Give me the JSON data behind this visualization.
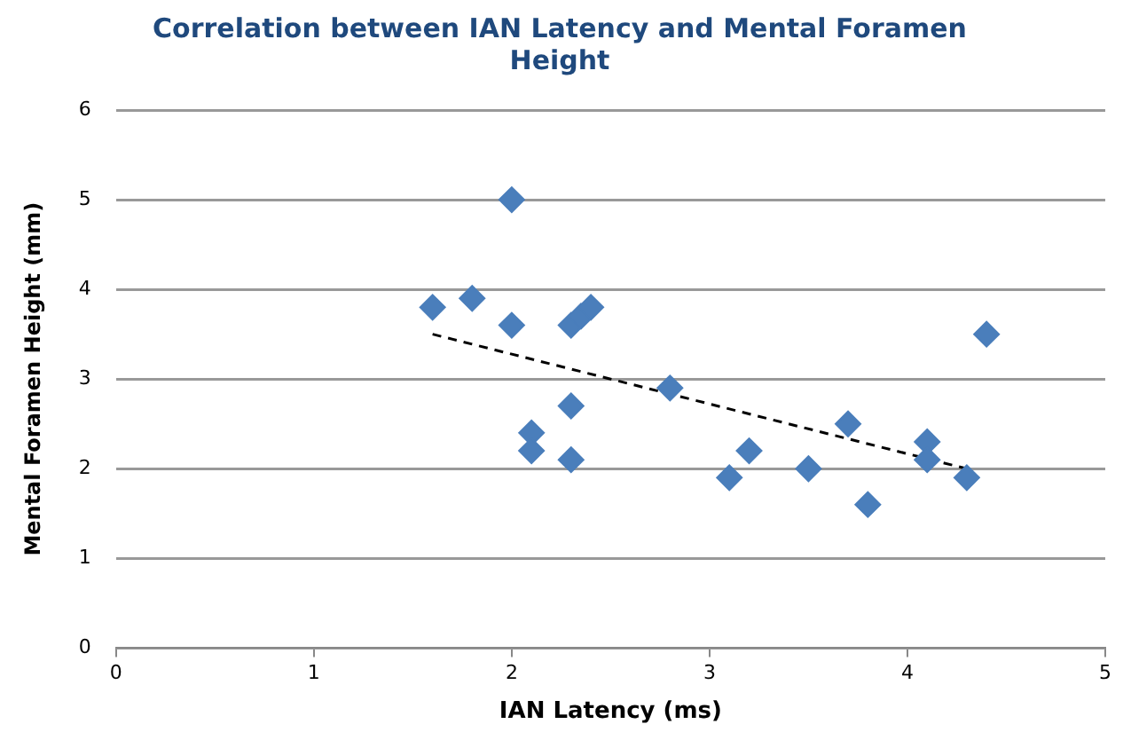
{
  "chart_data": {
    "type": "scatter",
    "title": "Correlation between IAN Latency and Mental Foramen Height",
    "xlabel": "IAN Latency (ms)",
    "ylabel": "Mental Foramen Height (mm)",
    "series": [
      {
        "color": "#4a7ebb",
        "marker": "diamond",
        "x": [
          1.6,
          1.8,
          2.0,
          2.0,
          2.1,
          2.1,
          2.3,
          2.3,
          2.3,
          2.35,
          2.4,
          2.8,
          3.1,
          3.2,
          3.5,
          3.7,
          3.8,
          4.1,
          4.1,
          4.3,
          4.4
        ],
        "values": [
          3.8,
          3.9,
          5.0,
          3.6,
          2.4,
          2.2,
          2.7,
          2.1,
          3.6,
          3.7,
          3.8,
          2.9,
          1.9,
          2.2,
          2.0,
          2.5,
          1.6,
          2.3,
          2.1,
          1.9,
          3.5
        ]
      },
      {
        "type": "line",
        "color": "#000000",
        "marker": "none",
        "line_style": "dashed",
        "x": [
          1.6,
          4.3
        ],
        "values": [
          3.5,
          2.0
        ]
      }
    ],
    "xlim": [
      0,
      5
    ],
    "xticks": [
      0,
      1,
      2,
      3,
      4,
      5
    ],
    "ylim": [
      0,
      6
    ],
    "yticks": [
      0,
      1,
      2,
      3,
      4,
      5,
      6
    ],
    "grid": "y",
    "legend": false
  }
}
